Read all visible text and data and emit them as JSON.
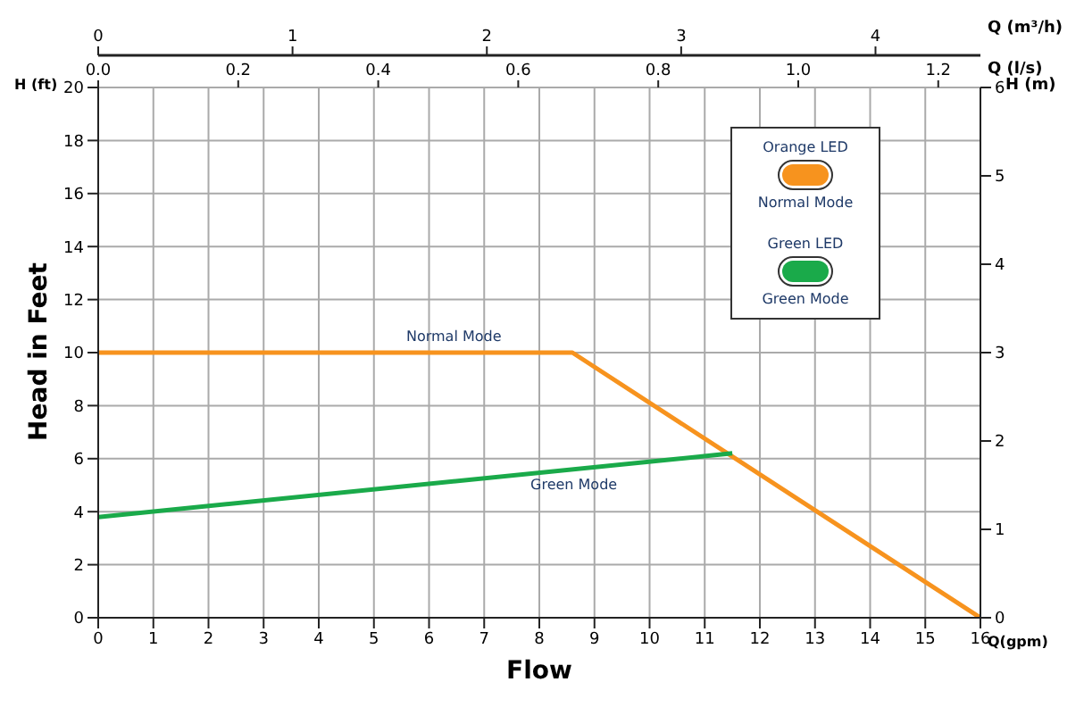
{
  "chart_data": {
    "type": "line",
    "xlabel": "Flow",
    "ylabel": "Head in Feet",
    "y2label": "H (m)",
    "x2label": "Q (m³/h)",
    "annotations": [
      "H (ft)",
      "Q(gpm)",
      "Orange LED",
      "Green LED",
      "Q (l/s)",
      "0.0",
      "0.2",
      "0.4",
      "0.6",
      "0.8",
      "1.0",
      "1.2"
    ],
    "series": [
      {
        "name": "Normal Mode",
        "color": "#f7931e",
        "x": [
          0,
          8.6,
          16
        ],
        "values": [
          10,
          10,
          0
        ]
      },
      {
        "name": "Green Mode",
        "color": "#1aaa4a",
        "x": [
          0,
          11.5
        ],
        "values": [
          3.8,
          6.2
        ]
      }
    ],
    "xlim": [
      0,
      16
    ],
    "xticks": [
      0,
      1,
      2,
      3,
      4,
      5,
      6,
      7,
      8,
      9,
      10,
      11,
      12,
      13,
      14,
      15,
      16
    ],
    "ylim": [
      0,
      20
    ],
    "yticks": [
      0,
      2,
      4,
      6,
      8,
      10,
      12,
      14,
      16,
      18,
      20
    ],
    "y2lim": [
      0,
      6
    ],
    "y2ticks": [
      0,
      1,
      2,
      3,
      4,
      5,
      6
    ],
    "x2lim": [
      0,
      4.54
    ],
    "x2ticks": [
      0,
      1,
      2,
      3,
      4
    ],
    "grid": true,
    "legend": "top right",
    "marker": "none",
    "line_style": "solid"
  }
}
